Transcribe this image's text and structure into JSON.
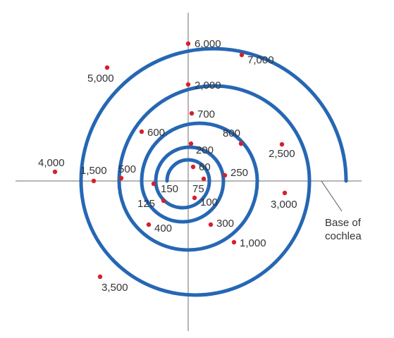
{
  "colors": {
    "spiral": "#2667b4",
    "axes": "#6e6e6e",
    "dot": "#d5202a",
    "text": "#333333"
  },
  "annotation": {
    "line1": "Base of",
    "line2": "cochlea"
  },
  "points": [
    {
      "label": "6,000"
    },
    {
      "label": "7,000"
    },
    {
      "label": "5,000"
    },
    {
      "label": "2,000"
    },
    {
      "label": "700"
    },
    {
      "label": "600"
    },
    {
      "label": "800"
    },
    {
      "label": "2,500"
    },
    {
      "label": "200"
    },
    {
      "label": "4,000"
    },
    {
      "label": "1,500"
    },
    {
      "label": "500"
    },
    {
      "label": "60"
    },
    {
      "label": "250"
    },
    {
      "label": "150"
    },
    {
      "label": "75"
    },
    {
      "label": "125"
    },
    {
      "label": "100"
    },
    {
      "label": "3,000"
    },
    {
      "label": "400"
    },
    {
      "label": "300"
    },
    {
      "label": "1,000"
    },
    {
      "label": "3,500"
    }
  ]
}
